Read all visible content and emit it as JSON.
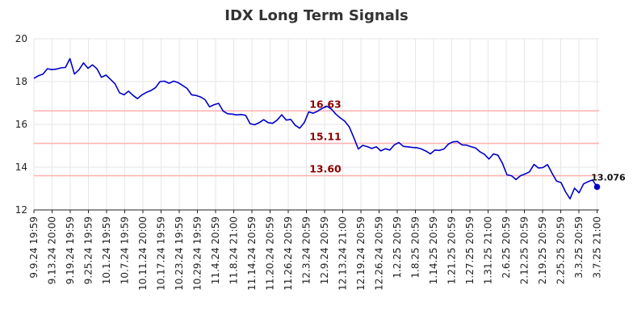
{
  "chart_data": {
    "type": "line",
    "title": "IDX Long Term Signals",
    "xlabel": "",
    "ylabel": "",
    "ylim": [
      12,
      20
    ],
    "yticks": [
      "12",
      "14",
      "16",
      "18",
      "20"
    ],
    "grid": true,
    "x_tick_labels": [
      "9.9.24 19:59",
      "9.13.24 20:00",
      "9.19.24 19:59",
      "9.25.24 19:59",
      "10.1.24 19:59",
      "10.7.24 19:59",
      "10.11.24 20:00",
      "10.17.24 19:59",
      "10.23.24 19:59",
      "10.29.24 19:59",
      "11.4.24 20:59",
      "11.8.24 21:00",
      "11.14.24 20:59",
      "11.20.24 20:59",
      "11.26.24 20:59",
      "12.3.24 20:59",
      "12.9.24 20:59",
      "12.13.24 21:00",
      "12.19.24 20:59",
      "12.26.24 20:59",
      "1.2.25 20:59",
      "1.8.25 20:59",
      "1.14.25 20:59",
      "1.21.25 20:59",
      "1.27.25 20:59",
      "1.31.25 21:00",
      "2.6.25 20:59",
      "2.12.25 20:59",
      "2.19.25 20:59",
      "2.25.25 20:59",
      "3.3.25 20:59",
      "3.7.25 21:00"
    ],
    "reference_lines": [
      {
        "value": 16.63,
        "label": "16.63"
      },
      {
        "value": 15.11,
        "label": "15.11"
      },
      {
        "value": 13.6,
        "label": "13.60"
      }
    ],
    "series": [
      {
        "values": [
          18.15,
          18.27,
          18.35,
          18.6,
          18.56,
          18.58,
          18.64,
          18.66,
          19.07,
          18.35,
          18.55,
          18.87,
          18.62,
          18.78,
          18.6,
          18.2,
          18.3,
          18.1,
          17.9,
          17.48,
          17.38,
          17.55,
          17.35,
          17.2,
          17.38,
          17.5,
          17.58,
          17.72,
          18.0,
          18.02,
          17.92,
          18.02,
          17.95,
          17.82,
          17.68,
          17.38,
          17.35,
          17.28,
          17.15,
          16.82,
          16.92,
          16.98,
          16.62,
          16.5,
          16.48,
          16.44,
          16.46,
          16.42,
          16.03,
          15.98,
          16.08,
          16.22,
          16.08,
          16.05,
          16.2,
          16.45,
          16.2,
          16.23,
          15.96,
          15.82,
          16.08,
          16.58,
          16.52,
          16.62,
          16.75,
          16.85,
          16.72,
          16.48,
          16.3,
          16.15,
          15.88,
          15.38,
          14.85,
          15.02,
          14.96,
          14.87,
          14.95,
          14.76,
          14.86,
          14.8,
          15.04,
          15.15,
          14.97,
          14.95,
          14.92,
          14.91,
          14.85,
          14.75,
          14.62,
          14.8,
          14.78,
          14.85,
          15.08,
          15.18,
          15.2,
          15.04,
          15.03,
          14.96,
          14.9,
          14.72,
          14.6,
          14.38,
          14.62,
          14.56,
          14.18,
          13.64,
          13.6,
          13.42,
          13.6,
          13.68,
          13.78,
          14.13,
          13.96,
          13.98,
          14.12,
          13.72,
          13.35,
          13.28,
          12.85,
          12.52,
          13.02,
          12.8,
          13.22,
          13.32,
          13.4,
          13.076
        ],
        "color": "#0000cc"
      }
    ],
    "last_value_label": "13.076",
    "colors": {
      "line": "#0000cc",
      "ref_line": "#ffb3b3",
      "ref_text": "#8b0000",
      "grid": "#e6e6e6",
      "axis": "#222222"
    }
  }
}
